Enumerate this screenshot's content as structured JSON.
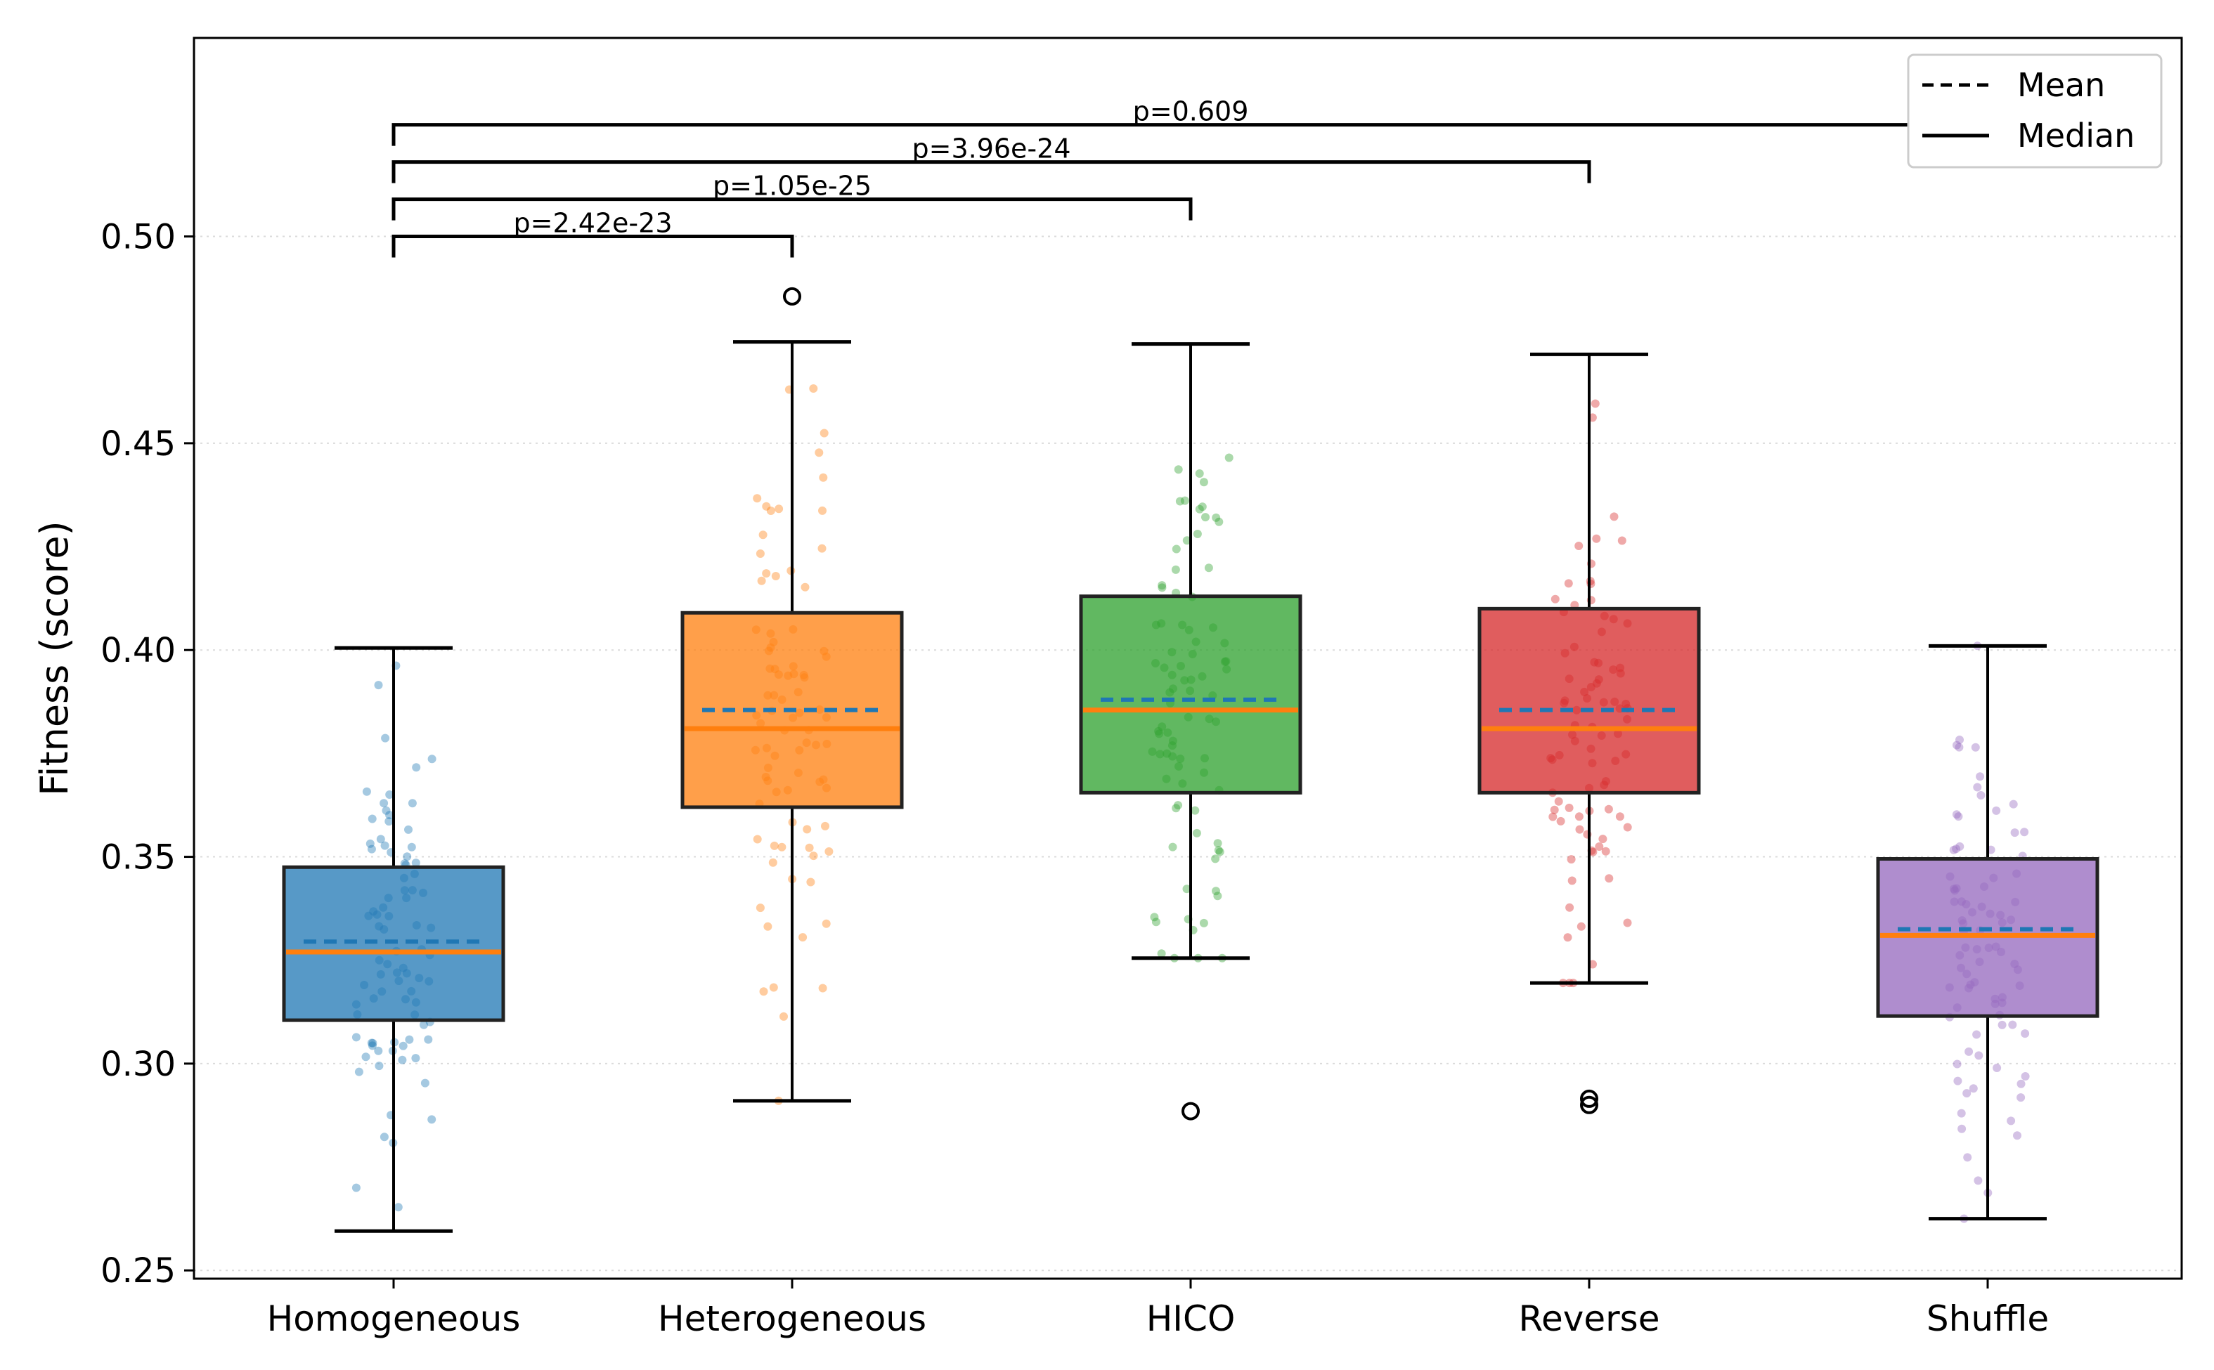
{
  "chart_data": {
    "type": "box",
    "title": "",
    "xlabel": "",
    "ylabel": "Fitness (score)",
    "ylim": [
      0.248,
      0.548
    ],
    "yticks": [
      0.25,
      0.3,
      0.35,
      0.4,
      0.45,
      0.5
    ],
    "ytick_labels": [
      "0.25",
      "0.30",
      "0.35",
      "0.40",
      "0.45",
      "0.50"
    ],
    "grid": "horizontal dotted",
    "categories": [
      "Homogeneous",
      "Heterogeneous",
      "HICO",
      "Reverse",
      "Shuffle"
    ],
    "groups": [
      {
        "name": "Homogeneous",
        "color": "#1f77b4",
        "whisker_low": 0.2595,
        "q1": 0.3105,
        "median": 0.327,
        "mean": 0.3295,
        "q3": 0.3475,
        "whisker_high": 0.4005,
        "outliers": []
      },
      {
        "name": "Heterogeneous",
        "color": "#ff7f0e",
        "whisker_low": 0.291,
        "q1": 0.362,
        "median": 0.381,
        "mean": 0.3855,
        "q3": 0.409,
        "whisker_high": 0.4745,
        "outliers": [
          0.4855
        ]
      },
      {
        "name": "HICO",
        "color": "#2ca02c",
        "whisker_low": 0.3255,
        "q1": 0.3655,
        "median": 0.3855,
        "mean": 0.388,
        "q3": 0.413,
        "whisker_high": 0.474,
        "outliers": [
          0.2885
        ]
      },
      {
        "name": "Reverse",
        "color": "#d62728",
        "whisker_low": 0.3195,
        "q1": 0.3655,
        "median": 0.381,
        "mean": 0.3855,
        "q3": 0.41,
        "whisker_high": 0.4715,
        "outliers": [
          0.29,
          0.2915
        ]
      },
      {
        "name": "Shuffle",
        "color": "#9467bd",
        "whisker_low": 0.2625,
        "q1": 0.3115,
        "median": 0.331,
        "mean": 0.3325,
        "q3": 0.3495,
        "whisker_high": 0.401,
        "outliers": []
      }
    ],
    "median_color": "#ff7f0e",
    "mean_color": "#1f77b4",
    "comparisons": [
      {
        "from": "Homogeneous",
        "to": "Heterogeneous",
        "label": "p=2.42e-23",
        "level": 0.5
      },
      {
        "from": "Homogeneous",
        "to": "HICO",
        "label": "p=1.05e-25",
        "level": 0.509
      },
      {
        "from": "Homogeneous",
        "to": "Reverse",
        "label": "p=3.96e-24",
        "level": 0.518
      },
      {
        "from": "Homogeneous",
        "to": "Shuffle",
        "label": "p=0.609",
        "level": 0.527
      }
    ],
    "legend": {
      "position": "top-right",
      "items": [
        {
          "label": "Mean",
          "style": "dashed"
        },
        {
          "label": "Median",
          "style": "solid"
        }
      ]
    }
  }
}
